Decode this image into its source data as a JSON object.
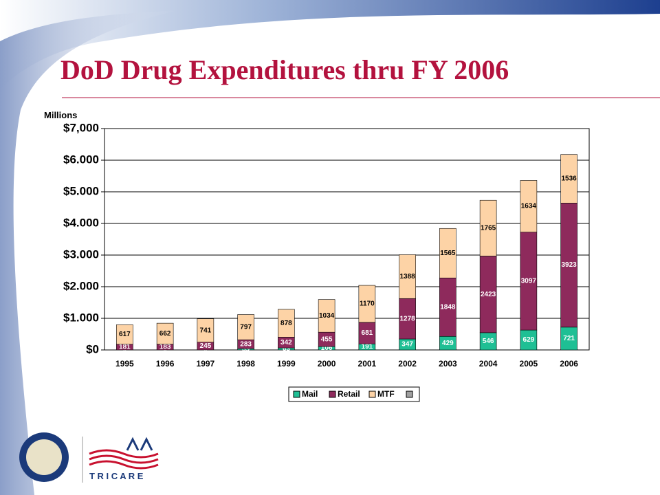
{
  "chart_data": {
    "type": "stacked_bar",
    "title": "DoD Drug Expenditures thru FY 2006",
    "y_label": "Millions",
    "categories": [
      "1995",
      "1996",
      "1997",
      "1998",
      "1999",
      "2000",
      "2001",
      "2002",
      "2003",
      "2004",
      "2005",
      "2006"
    ],
    "series": [
      {
        "name": "Mail",
        "color": "#1fbf94",
        "values": [
          0,
          0,
          0,
          39,
          63,
          106,
          191,
          347,
          429,
          546,
          629,
          721
        ]
      },
      {
        "name": "Retail",
        "color": "#8e2a5c",
        "values": [
          181,
          183,
          245,
          283,
          342,
          455,
          681,
          1278,
          1848,
          2423,
          3097,
          3923
        ]
      },
      {
        "name": "MTF",
        "color": "#fdd3a6",
        "values": [
          617,
          662,
          741,
          797,
          878,
          1034,
          1170,
          1388,
          1565,
          1765,
          1634,
          1536
        ]
      }
    ],
    "ylim": [
      0,
      7000
    ],
    "yticks": [
      {
        "value": 0,
        "label": "$0"
      },
      {
        "value": 1000,
        "label": "$1.000"
      },
      {
        "value": 2000,
        "label": "$2.000"
      },
      {
        "value": 3000,
        "label": "$3.000"
      },
      {
        "value": 4000,
        "label": "$4.000"
      },
      {
        "value": 5000,
        "label": "$5.000"
      },
      {
        "value": 6000,
        "label": "$6.000"
      },
      {
        "value": 7000,
        "label": "$7,000"
      }
    ],
    "grid": true,
    "legend": "bottom"
  },
  "logo": {
    "text": "T R I C A R E"
  }
}
